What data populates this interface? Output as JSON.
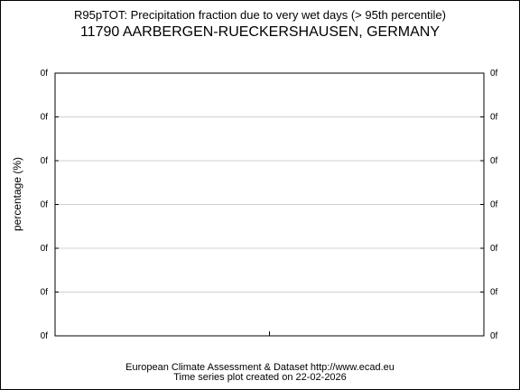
{
  "title": "R95pTOT: Precipitation fraction due to very wet days (> 95th percentile)",
  "subtitle": "11790 AARBERGEN-RUECKERSHAUSEN, GERMANY",
  "footer": {
    "credit": "European Climate Assessment & Dataset  http://www.ecad.eu",
    "created": "Time series plot created on 22-02-2026"
  },
  "chart_data": {
    "type": "line",
    "title": "R95pTOT: Precipitation fraction due to very wet days (> 95th percentile)",
    "subtitle": "11790 AARBERGEN-RUECKERSHAUSEN, GERMANY",
    "xlabel": "",
    "ylabel": "percentage (%)",
    "y_tick_labels": [
      "0f",
      "0f",
      "0f",
      "0f",
      "0f",
      "0f",
      "0f"
    ],
    "x_tick_labels": [],
    "series": [],
    "grid": true,
    "colors": {
      "axis": "#000000",
      "grid": "#d0d0d0"
    }
  }
}
